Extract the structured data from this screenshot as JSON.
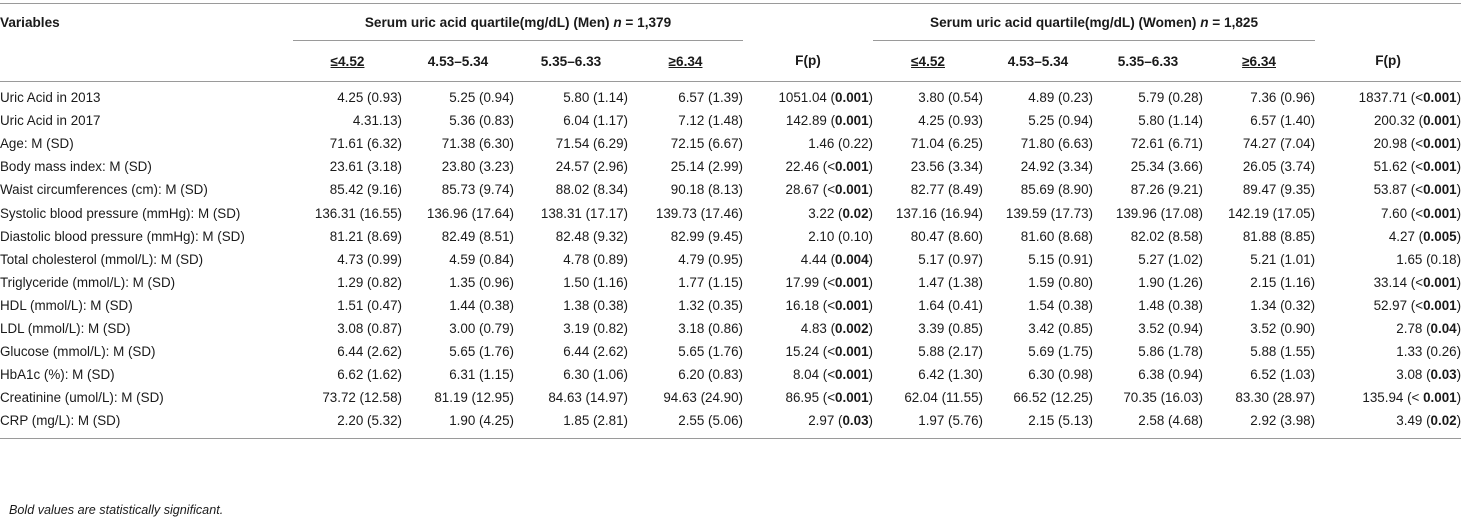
{
  "header": {
    "variables": "Variables",
    "men_group_prefix": "Serum uric acid quartile(mg/dL) (Men) ",
    "men_group_n": "n",
    "men_group_suffix": " = 1,379",
    "women_group_prefix": "Serum uric acid quartile(mg/dL) (Women) ",
    "women_group_n": "n",
    "women_group_suffix": " = 1,825",
    "quartiles": [
      "≤4.52",
      "4.53–5.34",
      "5.35–6.33",
      "≥6.34"
    ],
    "fp": "F(p)"
  },
  "rows": [
    {
      "label": "Uric Acid in 2013",
      "men": [
        "4.25 (0.93)",
        "5.25 (0.94)",
        "5.80 (1.14)",
        "6.57 (1.39)"
      ],
      "men_f_pre": "1051.04 (",
      "men_f_bold": "0.001",
      "men_f_post": ")",
      "women": [
        "3.80 (0.54)",
        "4.89 (0.23)",
        "5.79 (0.28)",
        "7.36 (0.96)"
      ],
      "women_f_pre": "1837.71 (<",
      "women_f_bold": "0.001",
      "women_f_post": ")"
    },
    {
      "label": "Uric Acid in 2017",
      "men": [
        "4.31.13)",
        "5.36 (0.83)",
        "6.04 (1.17)",
        "7.12 (1.48)"
      ],
      "men_f_pre": "142.89 (",
      "men_f_bold": "0.001",
      "men_f_post": ")",
      "women": [
        "4.25 (0.93)",
        "5.25 (0.94)",
        "5.80 (1.14)",
        "6.57 (1.40)"
      ],
      "women_f_pre": "200.32 (",
      "women_f_bold": "0.001",
      "women_f_post": ")"
    },
    {
      "label": "Age: M (SD)",
      "men": [
        "71.61 (6.32)",
        "71.38 (6.30)",
        "71.54 (6.29)",
        "72.15 (6.67)"
      ],
      "men_f_pre": "1.46 (0.22)",
      "men_f_bold": "",
      "men_f_post": "",
      "women": [
        "71.04 (6.25)",
        "71.80 (6.63)",
        "72.61 (6.71)",
        "74.27 (7.04)"
      ],
      "women_f_pre": "20.98 (<",
      "women_f_bold": "0.001",
      "women_f_post": ")"
    },
    {
      "label": "Body mass index: M (SD)",
      "men": [
        "23.61 (3.18)",
        "23.80 (3.23)",
        "24.57 (2.96)",
        "25.14 (2.99)"
      ],
      "men_f_pre": "22.46 (<",
      "men_f_bold": "0.001",
      "men_f_post": ")",
      "women": [
        "23.56 (3.34)",
        "24.92 (3.34)",
        "25.34 (3.66)",
        "26.05 (3.74)"
      ],
      "women_f_pre": "51.62 (<",
      "women_f_bold": "0.001",
      "women_f_post": ")"
    },
    {
      "label": "Waist circumferences (cm): M (SD)",
      "men": [
        "85.42 (9.16)",
        "85.73 (9.74)",
        "88.02 (8.34)",
        "90.18 (8.13)"
      ],
      "men_f_pre": "28.67 (<",
      "men_f_bold": "0.001",
      "men_f_post": ")",
      "women": [
        "82.77 (8.49)",
        "85.69 (8.90)",
        "87.26 (9.21)",
        "89.47 (9.35)"
      ],
      "women_f_pre": "53.87 (<",
      "women_f_bold": "0.001",
      "women_f_post": ")"
    },
    {
      "label": "Systolic blood pressure (mmHg): M (SD)",
      "men": [
        "136.31 (16.55)",
        "136.96 (17.64)",
        "138.31 (17.17)",
        "139.73 (17.46)"
      ],
      "men_f_pre": "3.22 (",
      "men_f_bold": "0.02",
      "men_f_post": ")",
      "women": [
        "137.16 (16.94)",
        "139.59 (17.73)",
        "139.96 (17.08)",
        "142.19 (17.05)"
      ],
      "women_f_pre": "7.60 (<",
      "women_f_bold": "0.001",
      "women_f_post": ")"
    },
    {
      "label": "Diastolic blood pressure (mmHg): M (SD)",
      "men": [
        "81.21 (8.69)",
        "82.49 (8.51)",
        "82.48 (9.32)",
        "82.99 (9.45)"
      ],
      "men_f_pre": "2.10 (0.10)",
      "men_f_bold": "",
      "men_f_post": "",
      "women": [
        "80.47 (8.60)",
        "81.60 (8.68)",
        "82.02 (8.58)",
        "81.88 (8.85)"
      ],
      "women_f_pre": "4.27 (",
      "women_f_bold": "0.005",
      "women_f_post": ")"
    },
    {
      "label": "Total cholesterol (mmol/L): M (SD)",
      "men": [
        "4.73 (0.99)",
        "4.59 (0.84)",
        "4.78 (0.89)",
        "4.79 (0.95)"
      ],
      "men_f_pre": "4.44 (",
      "men_f_bold": "0.004",
      "men_f_post": ")",
      "women": [
        "5.17 (0.97)",
        "5.15 (0.91)",
        "5.27 (1.02)",
        "5.21 (1.01)"
      ],
      "women_f_pre": "1.65 (0.18)",
      "women_f_bold": "",
      "women_f_post": ""
    },
    {
      "label": "Triglyceride (mmol/L): M (SD)",
      "men": [
        "1.29 (0.82)",
        "1.35 (0.96)",
        "1.50 (1.16)",
        "1.77 (1.15)"
      ],
      "men_f_pre": "17.99 (<",
      "men_f_bold": "0.001",
      "men_f_post": ")",
      "women": [
        "1.47 (1.38)",
        "1.59 (0.80)",
        "1.90 (1.26)",
        "2.15 (1.16)"
      ],
      "women_f_pre": "33.14 (<",
      "women_f_bold": "0.001",
      "women_f_post": ")"
    },
    {
      "label": "HDL (mmol/L): M (SD)",
      "men": [
        "1.51 (0.47)",
        "1.44 (0.38)",
        "1.38 (0.38)",
        "1.32 (0.35)"
      ],
      "men_f_pre": "16.18 (<",
      "men_f_bold": "0.001",
      "men_f_post": ")",
      "women": [
        "1.64 (0.41)",
        "1.54 (0.38)",
        "1.48 (0.38)",
        "1.34 (0.32)"
      ],
      "women_f_pre": "52.97 (<",
      "women_f_bold": "0.001",
      "women_f_post": ")"
    },
    {
      "label": "LDL (mmol/L): M (SD)",
      "men": [
        "3.08 (0.87)",
        "3.00 (0.79)",
        "3.19 (0.82)",
        "3.18 (0.86)"
      ],
      "men_f_pre": "4.83 (",
      "men_f_bold": "0.002",
      "men_f_post": ")",
      "women": [
        "3.39 (0.85)",
        "3.42 (0.85)",
        "3.52 (0.94)",
        "3.52 (0.90)"
      ],
      "women_f_pre": "2.78 (",
      "women_f_bold": "0.04",
      "women_f_post": ")"
    },
    {
      "label": "Glucose (mmol/L): M (SD)",
      "men": [
        "6.44 (2.62)",
        "5.65 (1.76)",
        "6.44 (2.62)",
        "5.65 (1.76)"
      ],
      "men_f_pre": "15.24 (<",
      "men_f_bold": "0.001",
      "men_f_post": ")",
      "women": [
        "5.88 (2.17)",
        "5.69 (1.75)",
        "5.86 (1.78)",
        "5.88 (1.55)"
      ],
      "women_f_pre": "1.33 (0.26)",
      "women_f_bold": "",
      "women_f_post": ""
    },
    {
      "label": "HbA1c (%): M (SD)",
      "men": [
        "6.62 (1.62)",
        "6.31 (1.15)",
        "6.30 (1.06)",
        "6.20 (0.83)"
      ],
      "men_f_pre": "8.04 (<",
      "men_f_bold": "0.001",
      "men_f_post": ")",
      "women": [
        "6.42 (1.30)",
        "6.30 (0.98)",
        "6.38 (0.94)",
        "6.52 (1.03)"
      ],
      "women_f_pre": "3.08 (",
      "women_f_bold": "0.03",
      "women_f_post": ")"
    },
    {
      "label": "Creatinine (umol/L): M (SD)",
      "men": [
        "73.72 (12.58)",
        "81.19 (12.95)",
        "84.63 (14.97)",
        "94.63 (24.90)"
      ],
      "men_f_pre": "86.95 (<",
      "men_f_bold": "0.001",
      "men_f_post": ")",
      "women": [
        "62.04 (11.55)",
        "66.52 (12.25)",
        "70.35 (16.03)",
        "83.30 (28.97)"
      ],
      "women_f_pre": "135.94 (< ",
      "women_f_bold": "0.001",
      "women_f_post": ")"
    },
    {
      "label": "CRP (mg/L): M (SD)",
      "men": [
        "2.20 (5.32)",
        "1.90 (4.25)",
        "1.85 (2.81)",
        "2.55 (5.06)"
      ],
      "men_f_pre": "2.97 (",
      "men_f_bold": "0.03",
      "men_f_post": ")",
      "women": [
        "1.97 (5.76)",
        "2.15 (5.13)",
        "2.58 (4.68)",
        "2.92 (3.98)"
      ],
      "women_f_pre": "3.49 (",
      "women_f_bold": "0.02",
      "women_f_post": ")"
    }
  ],
  "footnote": "Bold values are statistically significant."
}
